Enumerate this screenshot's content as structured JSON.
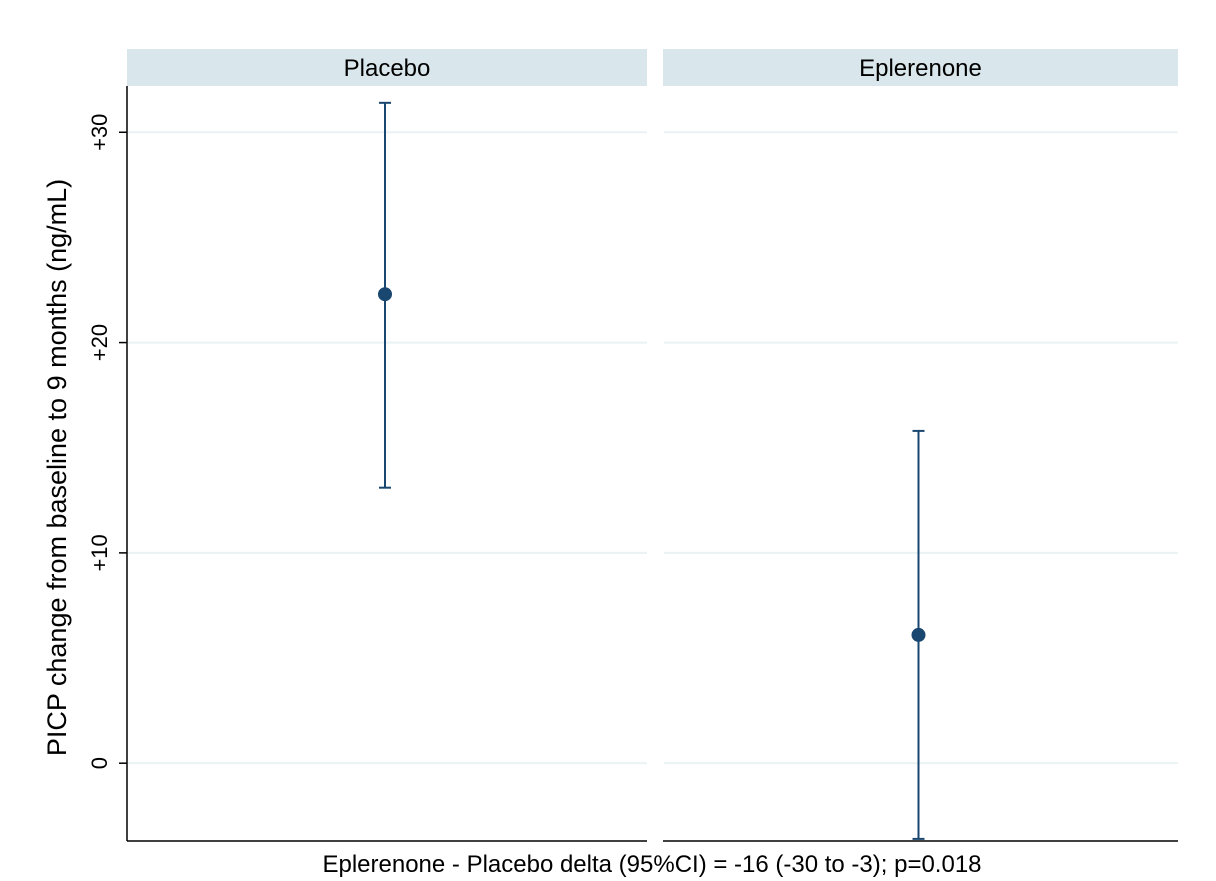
{
  "chart_data": {
    "type": "scatter",
    "subtype": "point-with-error-bars",
    "ylabel": "PICP change from baseline to 9 months (ng/mL)",
    "xlabel": "Eplerenone - Placebo delta (95%CI) = -16 (-30 to -3); p=0.018",
    "ylim": [
      -3.7,
      32.2
    ],
    "yticks": [
      {
        "value": 0,
        "label": "0"
      },
      {
        "value": 10,
        "label": "+10"
      },
      {
        "value": 20,
        "label": "+20"
      },
      {
        "value": 30,
        "label": "+30"
      }
    ],
    "grid": true,
    "panels": [
      {
        "title": "Placebo",
        "estimate": 22.3,
        "ci_low": 13.1,
        "ci_high": 31.4
      },
      {
        "title": "Eplerenone",
        "estimate": 6.1,
        "ci_low": -3.6,
        "ci_high": 15.8
      }
    ],
    "colors": {
      "marker": "#1a476f",
      "panel_header_bg": "#d9e6eb",
      "gridline": "#eaf2f3",
      "axis": "#000000"
    }
  }
}
